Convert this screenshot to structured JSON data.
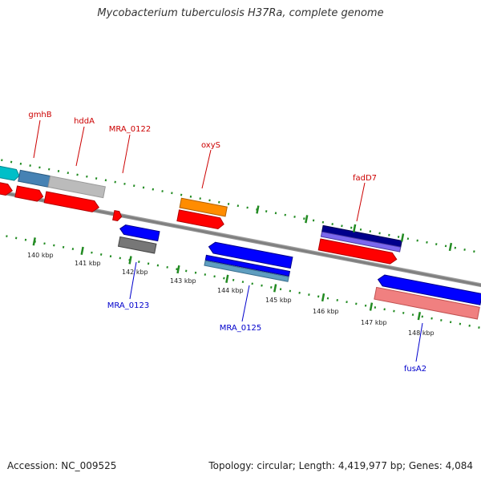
{
  "title": "Mycobacterium tuberculosis H37Ra, complete genome",
  "footer": {
    "accession": "Accession: NC_009525",
    "stats": "Topology: circular; Length: 4,419,977 bp; Genes: 4,084"
  },
  "colors": {
    "forward_label": "#cc0000",
    "reverse_label": "#0000cc",
    "tick_green": "#228b22",
    "backbone": "#888888"
  },
  "scale_labels": [
    "140 kbp",
    "141 kbp",
    "142 kbp",
    "143 kbp",
    "144 kbp",
    "145 kbp",
    "146 kbp",
    "147 kbp",
    "148 kbp"
  ],
  "forward_genes": [
    "gmhB",
    "hddA",
    "MRA_0122",
    "oxyS",
    "fadD7"
  ],
  "reverse_genes": [
    "MRA_0123",
    "MRA_0125",
    "fusA2"
  ]
}
